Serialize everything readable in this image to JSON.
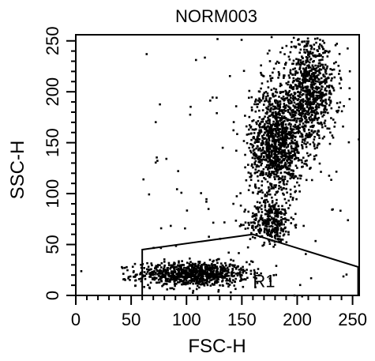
{
  "chart_data": {
    "type": "scatter",
    "title": "NORM003",
    "xlabel": "FSC-H",
    "ylabel": "SSC-H",
    "xlim": [
      0,
      256
    ],
    "ylim": [
      0,
      256
    ],
    "x_ticks": [
      "0",
      "50",
      "100",
      "150",
      "200",
      "250"
    ],
    "y_ticks": [
      "0",
      "50",
      "100",
      "150",
      "200",
      "250"
    ],
    "grid": false,
    "colors": {
      "points": "#000000",
      "gate": "#000000",
      "background": "#ffffff"
    },
    "gate": {
      "name": "R1",
      "vertices": [
        [
          60,
          0
        ],
        [
          60,
          45
        ],
        [
          160,
          60
        ],
        [
          255,
          28
        ],
        [
          255,
          0
        ]
      ]
    },
    "populations": [
      {
        "name": "",
        "center": [
          105,
          22
        ],
        "spread": [
          25,
          6
        ],
        "count": 900
      },
      {
        "name": "",
        "center": [
          175,
          72
        ],
        "spread": [
          10,
          10
        ],
        "count": 300
      },
      {
        "name": "",
        "center": [
          180,
          150
        ],
        "spread": [
          12,
          28
        ],
        "count": 1200
      },
      {
        "name": "",
        "center": [
          210,
          200
        ],
        "spread": [
          12,
          25
        ],
        "count": 900
      }
    ]
  }
}
